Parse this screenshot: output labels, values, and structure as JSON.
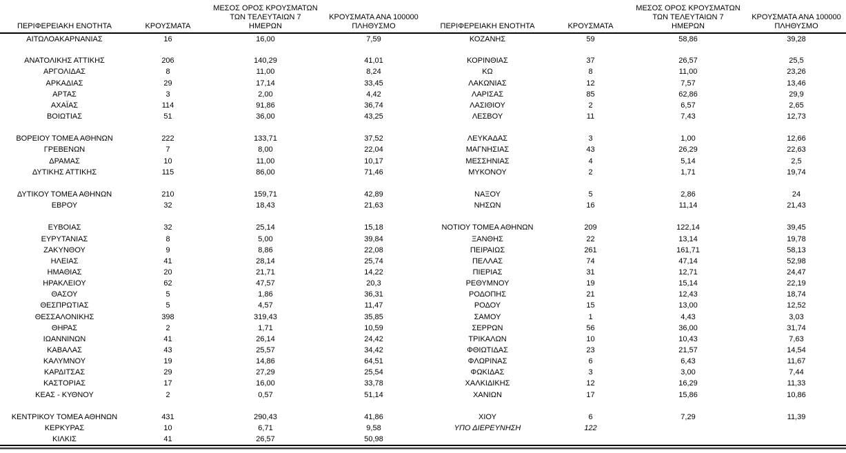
{
  "columns": {
    "region": "ΠΕΡΙΦΕΡΕΙΑΚΗ ΕΝΟΤΗΤΑ",
    "cases": "ΚΡΟΥΣΜΑΤΑ",
    "avg7_lines": [
      "ΜΕΣΟΣ ΟΡΟΣ ΚΡΟΥΣΜΑΤΩΝ",
      "ΤΩΝ ΤΕΛΕΥΤΑΙΩΝ 7",
      "ΗΜΕΡΩΝ"
    ],
    "per100k_lines": [
      "ΚΡΟΥΣΜΑΤΑ ΑΝΑ 100000",
      "ΠΛΗΘΥΣΜΟ"
    ]
  },
  "left_rows": [
    {
      "region": "ΑΙΤΩΛΟΑΚΑΡΝΑΝΙΑΣ",
      "cases": "16",
      "avg7": "16,00",
      "per100k": "7,59"
    },
    null,
    {
      "region": "ΑΝΑΤΟΛΙΚΗΣ ΑΤΤΙΚΗΣ",
      "cases": "206",
      "avg7": "140,29",
      "per100k": "41,01"
    },
    {
      "region": "ΑΡΓΟΛΙΔΑΣ",
      "cases": "8",
      "avg7": "11,00",
      "per100k": "8,24"
    },
    {
      "region": "ΑΡΚΑΔΙΑΣ",
      "cases": "29",
      "avg7": "17,14",
      "per100k": "33,45"
    },
    {
      "region": "ΑΡΤΑΣ",
      "cases": "3",
      "avg7": "2,00",
      "per100k": "4,42"
    },
    {
      "region": "ΑΧΑΪΑΣ",
      "cases": "114",
      "avg7": "91,86",
      "per100k": "36,74"
    },
    {
      "region": "ΒΟΙΩΤΙΑΣ",
      "cases": "51",
      "avg7": "36,00",
      "per100k": "43,25"
    },
    null,
    {
      "region": "ΒΟΡΕΙΟΥ ΤΟΜΕΑ ΑΘΗΝΩΝ",
      "cases": "222",
      "avg7": "133,71",
      "per100k": "37,52"
    },
    {
      "region": "ΓΡΕΒΕΝΩΝ",
      "cases": "7",
      "avg7": "8,00",
      "per100k": "22,04"
    },
    {
      "region": "ΔΡΑΜΑΣ",
      "cases": "10",
      "avg7": "11,00",
      "per100k": "10,17"
    },
    {
      "region": "ΔΥΤΙΚΗΣ ΑΤΤΙΚΗΣ",
      "cases": "115",
      "avg7": "86,00",
      "per100k": "71,46"
    },
    null,
    {
      "region": "ΔΥΤΙΚΟΥ ΤΟΜΕΑ ΑΘΗΝΩΝ",
      "cases": "210",
      "avg7": "159,71",
      "per100k": "42,89"
    },
    {
      "region": "ΕΒΡΟΥ",
      "cases": "32",
      "avg7": "18,43",
      "per100k": "21,63"
    },
    null,
    {
      "region": "ΕΥΒΟΙΑΣ",
      "cases": "32",
      "avg7": "25,14",
      "per100k": "15,18"
    },
    {
      "region": "ΕΥΡΥΤΑΝΙΑΣ",
      "cases": "8",
      "avg7": "5,00",
      "per100k": "39,84"
    },
    {
      "region": "ΖΑΚΥΝΘΟΥ",
      "cases": "9",
      "avg7": "8,86",
      "per100k": "22,08"
    },
    {
      "region": "ΗΛΕΙΑΣ",
      "cases": "41",
      "avg7": "28,14",
      "per100k": "25,74"
    },
    {
      "region": "ΗΜΑΘΙΑΣ",
      "cases": "20",
      "avg7": "21,71",
      "per100k": "14,22"
    },
    {
      "region": "ΗΡΑΚΛΕΙΟΥ",
      "cases": "62",
      "avg7": "47,57",
      "per100k": "20,3"
    },
    {
      "region": "ΘΑΣΟΥ",
      "cases": "5",
      "avg7": "1,86",
      "per100k": "36,31"
    },
    {
      "region": "ΘΕΣΠΡΩΤΙΑΣ",
      "cases": "5",
      "avg7": "4,57",
      "per100k": "11,47"
    },
    {
      "region": "ΘΕΣΣΑΛΟΝΙΚΗΣ",
      "cases": "398",
      "avg7": "319,43",
      "per100k": "35,85"
    },
    {
      "region": "ΘΗΡΑΣ",
      "cases": "2",
      "avg7": "1,71",
      "per100k": "10,59"
    },
    {
      "region": "ΙΩΑΝΝΙΝΩΝ",
      "cases": "41",
      "avg7": "26,14",
      "per100k": "24,42"
    },
    {
      "region": "ΚΑΒΑΛΑΣ",
      "cases": "43",
      "avg7": "25,57",
      "per100k": "34,42"
    },
    {
      "region": "ΚΑΛΥΜΝΟΥ",
      "cases": "19",
      "avg7": "14,86",
      "per100k": "64,51"
    },
    {
      "region": "ΚΑΡΔΙΤΣΑΣ",
      "cases": "29",
      "avg7": "27,29",
      "per100k": "25,54"
    },
    {
      "region": "ΚΑΣΤΟΡΙΑΣ",
      "cases": "17",
      "avg7": "16,00",
      "per100k": "33,78"
    },
    {
      "region": "ΚΕΑΣ - ΚΥΘΝΟΥ",
      "cases": "2",
      "avg7": "0,57",
      "per100k": "51,14"
    },
    null,
    {
      "region": "ΚΕΝΤΡΙΚΟΥ ΤΟΜΕΑ ΑΘΗΝΩΝ",
      "cases": "431",
      "avg7": "290,43",
      "per100k": "41,86"
    },
    {
      "region": "ΚΕΡΚΥΡΑΣ",
      "cases": "10",
      "avg7": "6,71",
      "per100k": "9,58"
    },
    {
      "region": "ΚΙΛΚΙΣ",
      "cases": "41",
      "avg7": "26,57",
      "per100k": "50,98"
    }
  ],
  "right_rows": [
    {
      "region": "ΚΟΖΑΝΗΣ",
      "cases": "59",
      "avg7": "58,86",
      "per100k": "39,28"
    },
    null,
    {
      "region": "ΚΟΡΙΝΘΙΑΣ",
      "cases": "37",
      "avg7": "26,57",
      "per100k": "25,5"
    },
    {
      "region": "ΚΩ",
      "cases": "8",
      "avg7": "11,00",
      "per100k": "23,26"
    },
    {
      "region": "ΛΑΚΩΝΙΑΣ",
      "cases": "12",
      "avg7": "7,57",
      "per100k": "13,46"
    },
    {
      "region": "ΛΑΡΙΣΑΣ",
      "cases": "85",
      "avg7": "62,86",
      "per100k": "29,9"
    },
    {
      "region": "ΛΑΣΙΘΙΟΥ",
      "cases": "2",
      "avg7": "6,57",
      "per100k": "2,65"
    },
    {
      "region": "ΛΕΣΒΟΥ",
      "cases": "11",
      "avg7": "7,43",
      "per100k": "12,73"
    },
    null,
    {
      "region": "ΛΕΥΚΑΔΑΣ",
      "cases": "3",
      "avg7": "1,00",
      "per100k": "12,66"
    },
    {
      "region": "ΜΑΓΝΗΣΙΑΣ",
      "cases": "43",
      "avg7": "26,29",
      "per100k": "22,63"
    },
    {
      "region": "ΜΕΣΣΗΝΙΑΣ",
      "cases": "4",
      "avg7": "5,14",
      "per100k": "2,5"
    },
    {
      "region": "ΜΥΚΟΝΟΥ",
      "cases": "2",
      "avg7": "1,71",
      "per100k": "19,74"
    },
    null,
    {
      "region": "ΝΑΞΟΥ",
      "cases": "5",
      "avg7": "2,86",
      "per100k": "24"
    },
    {
      "region": "ΝΗΣΩΝ",
      "cases": "16",
      "avg7": "11,14",
      "per100k": "21,43"
    },
    null,
    {
      "region": "ΝΟΤΙΟΥ ΤΟΜΕΑ ΑΘΗΝΩΝ",
      "cases": "209",
      "avg7": "122,14",
      "per100k": "39,45"
    },
    {
      "region": "ΞΑΝΘΗΣ",
      "cases": "22",
      "avg7": "13,14",
      "per100k": "19,78"
    },
    {
      "region": "ΠΕΙΡΑΙΩΣ",
      "cases": "261",
      "avg7": "161,71",
      "per100k": "58,13"
    },
    {
      "region": "ΠΕΛΛΑΣ",
      "cases": "74",
      "avg7": "47,14",
      "per100k": "52,98"
    },
    {
      "region": "ΠΙΕΡΙΑΣ",
      "cases": "31",
      "avg7": "12,71",
      "per100k": "24,47"
    },
    {
      "region": "ΡΕΘΥΜΝΟΥ",
      "cases": "19",
      "avg7": "15,14",
      "per100k": "22,19"
    },
    {
      "region": "ΡΟΔΟΠΗΣ",
      "cases": "21",
      "avg7": "12,43",
      "per100k": "18,74"
    },
    {
      "region": "ΡΟΔΟΥ",
      "cases": "15",
      "avg7": "13,00",
      "per100k": "12,52"
    },
    {
      "region": "ΣΑΜΟΥ",
      "cases": "1",
      "avg7": "4,43",
      "per100k": "3,03"
    },
    {
      "region": "ΣΕΡΡΩΝ",
      "cases": "56",
      "avg7": "36,00",
      "per100k": "31,74"
    },
    {
      "region": "ΤΡΙΚΑΛΩΝ",
      "cases": "10",
      "avg7": "10,43",
      "per100k": "7,63"
    },
    {
      "region": "ΦΘΙΩΤΙΔΑΣ",
      "cases": "23",
      "avg7": "21,57",
      "per100k": "14,54"
    },
    {
      "region": "ΦΛΩΡΙΝΑΣ",
      "cases": "6",
      "avg7": "6,43",
      "per100k": "11,67"
    },
    {
      "region": "ΦΩΚΙΔΑΣ",
      "cases": "3",
      "avg7": "3,00",
      "per100k": "7,44"
    },
    {
      "region": "ΧΑΛΚΙΔΙΚΗΣ",
      "cases": "12",
      "avg7": "16,29",
      "per100k": "11,33"
    },
    {
      "region": "ΧΑΝΙΩΝ",
      "cases": "17",
      "avg7": "15,86",
      "per100k": "10,86"
    },
    null,
    {
      "region": "ΧΙΟΥ",
      "cases": "6",
      "avg7": "7,29",
      "per100k": "11,39"
    },
    {
      "region": "ΥΠΟ ΔΙΕΡΕΥΝΗΣΗ",
      "cases": "122",
      "avg7": "",
      "per100k": "",
      "italic": true
    },
    null
  ]
}
